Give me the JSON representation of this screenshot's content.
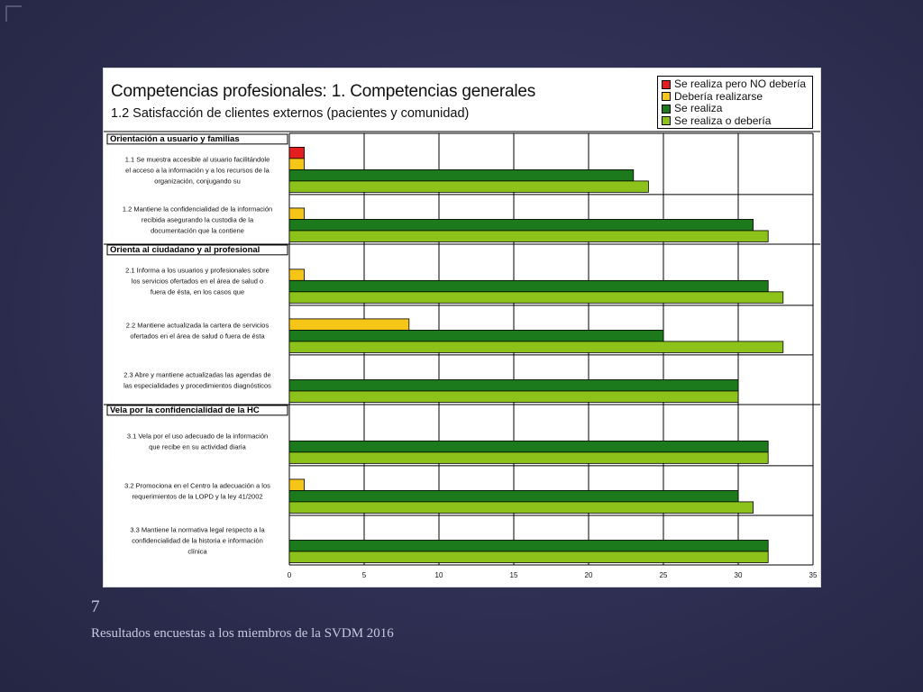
{
  "slide": {
    "page_number": "7",
    "footer": "Resultados encuestas a los miembros de la SVDM 2016"
  },
  "chart_data": {
    "type": "bar",
    "orientation": "horizontal",
    "title": "Competencias profesionales: 1. Competencias generales",
    "subtitle": "1.2  Satisfacción de clientes externos (pacientes y comunidad)",
    "xlabel": "",
    "ylabel": "",
    "xlim": [
      0,
      35
    ],
    "xticks": [
      0,
      5,
      10,
      15,
      20,
      25,
      30,
      35
    ],
    "grid": true,
    "legend_position": "top-right",
    "series": [
      {
        "name": "Se realiza pero NO debería",
        "color": "#e41e1e"
      },
      {
        "name": "Debería realizarse",
        "color": "#f5c518"
      },
      {
        "name": "Se realiza",
        "color": "#1c7a1c"
      },
      {
        "name": "Se realiza o debería",
        "color": "#8cc21a"
      }
    ],
    "sections": [
      {
        "header": "Orientación a usuario y familias",
        "items": [
          {
            "lines": [
              "1.1 Se muestra accesible al usuario facilitándole",
              "el acceso a la información y a los recursos de la",
              "organización, conjugando su"
            ],
            "values": [
              1,
              1,
              23,
              24
            ]
          },
          {
            "lines": [
              "1.2 Mantiene la confidencialidad de la información",
              "recibida asegurando la custodia de la",
              "documentación que la contiene"
            ],
            "values": [
              0,
              1,
              31,
              32
            ]
          }
        ]
      },
      {
        "header": "Orienta al ciudadano y al profesional",
        "items": [
          {
            "lines": [
              "2.1 Informa a los usuarios y profesionales sobre",
              "los servicios ofertados en el área de salud o",
              "fuera de ésta, en los casos que"
            ],
            "values": [
              0,
              1,
              32,
              33
            ]
          },
          {
            "lines": [
              "2.2 Mantiene actualizada la cartera de servicios",
              "ofertados en el área de salud o fuera de ésta"
            ],
            "values": [
              0,
              8,
              25,
              33
            ]
          },
          {
            "lines": [
              "2.3 Abre y mantiene actualizadas las agendas de",
              "las especialidades y procedimientos diagnósticos"
            ],
            "values": [
              0,
              0,
              30,
              30
            ]
          }
        ]
      },
      {
        "header": "Vela por la confidencialidad de la HC",
        "items": [
          {
            "lines": [
              "3.1 Vela por el uso adecuado de la información",
              "que recibe en su actividad diaria"
            ],
            "values": [
              0,
              0,
              32,
              32
            ]
          },
          {
            "lines": [
              "3.2 Promociona en el Centro la adecuación a los",
              "requerimientos de la LOPD y la ley 41/2002"
            ],
            "values": [
              0,
              1,
              30,
              31
            ]
          },
          {
            "lines": [
              "3.3 Mantiene la normativa legal respecto a la",
              "confidencialidad de la historia e información",
              "clínica"
            ],
            "values": [
              0,
              0,
              32,
              32
            ]
          }
        ]
      }
    ]
  }
}
